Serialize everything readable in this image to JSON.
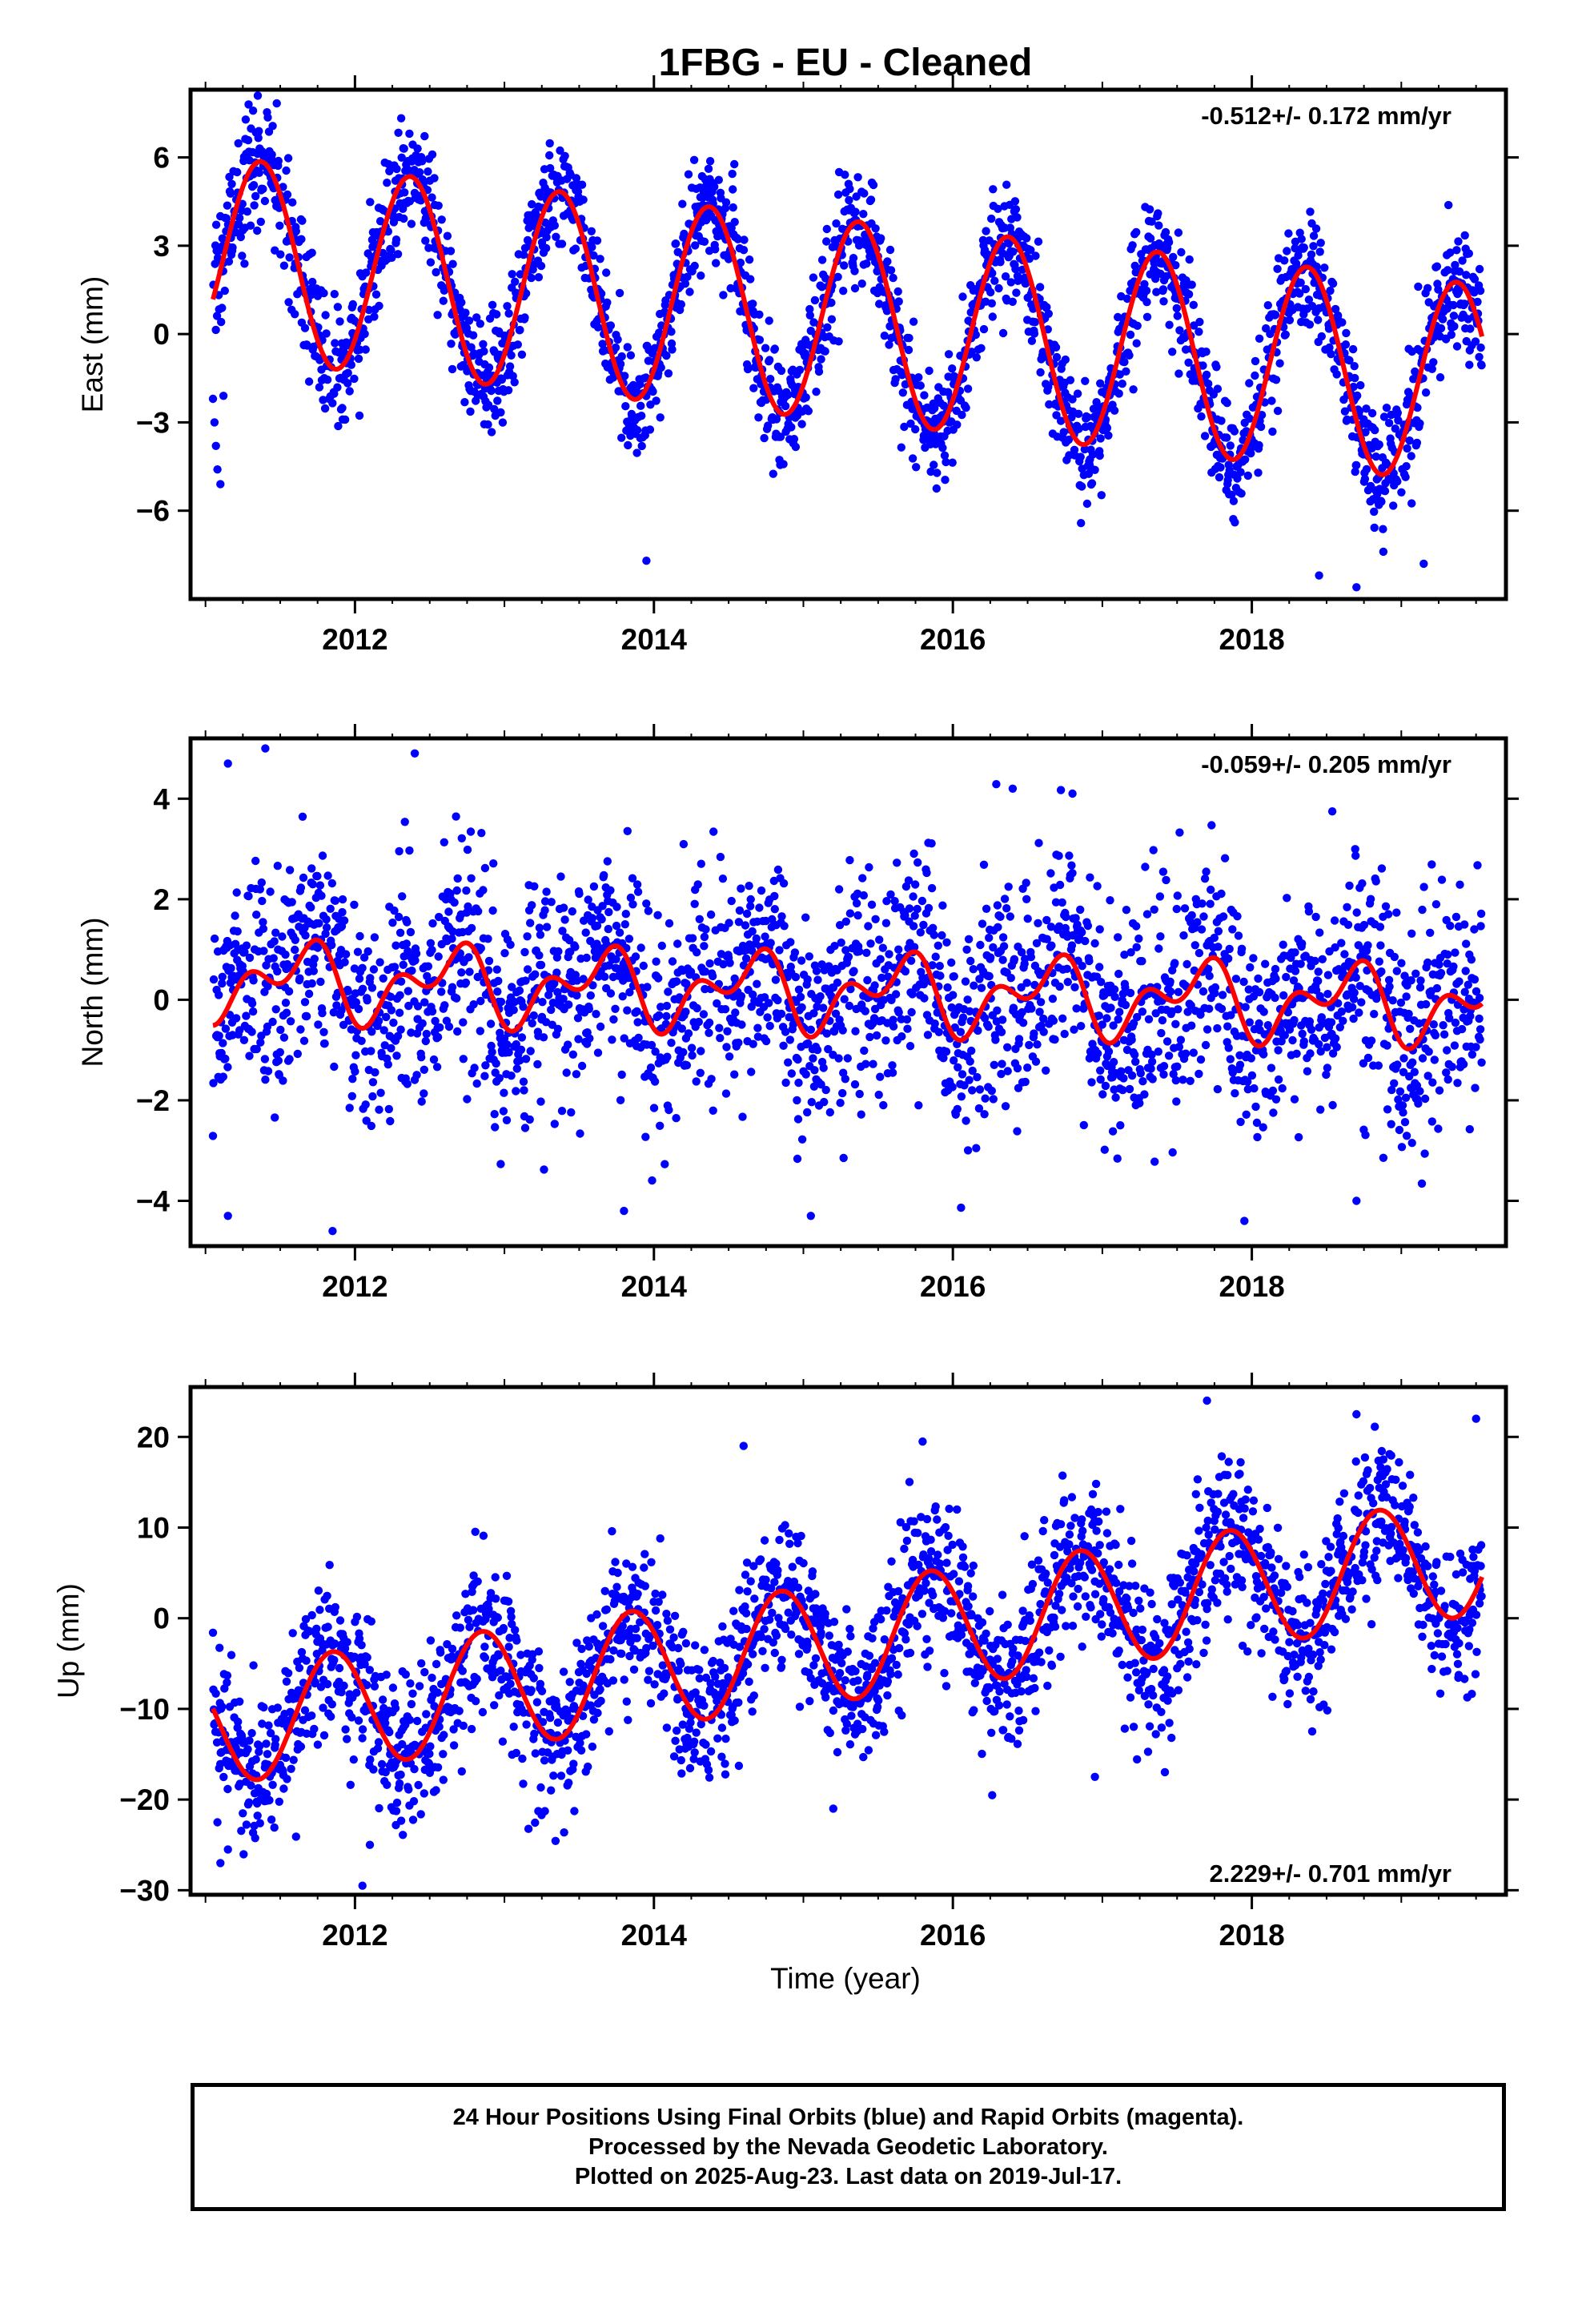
{
  "title": "1FBG  - EU - Cleaned",
  "xlabel": "Time (year)",
  "footer": {
    "lines": [
      "24 Hour Positions Using Final Orbits (blue) and Rapid Orbits (magenta).",
      "Processed by the Nevada Geodetic Laboratory.",
      "Plotted on 2025-Aug-23. Last data on 2019-Jul-17."
    ]
  },
  "colors": {
    "points": "#0000ff",
    "fit": "#ff0000",
    "frame": "#000000",
    "background": "#ffffff"
  },
  "chart_data": [
    {
      "type": "scatter",
      "component": "east",
      "ylabel": "East (mm)",
      "rate_label": "-0.512+/- 0.172 mm/yr",
      "xlim": [
        2010.9,
        2019.7
      ],
      "ylim": [
        -9,
        8.3
      ],
      "xticks": [
        2012,
        2014,
        2016,
        2018
      ],
      "yticks": [
        -6,
        -3,
        0,
        3,
        6
      ],
      "x_start": 2011.05,
      "x_end": 2019.54,
      "model": {
        "offset": 0.45,
        "ref_year": 2015.3,
        "rate": -0.512,
        "annual_amp": 3.4,
        "annual_phase": 0.12,
        "semiannual_amp": 0.0,
        "semiannual_phase": 0.0
      },
      "scatter_sd": 1.0,
      "outliers": [
        [
          2011.05,
          -2.2
        ],
        [
          2011.06,
          -3.0
        ],
        [
          2011.07,
          -3.8
        ],
        [
          2011.08,
          -4.6
        ],
        [
          2011.1,
          -5.1
        ],
        [
          2011.12,
          -2.1
        ],
        [
          2013.95,
          -7.7
        ],
        [
          2018.45,
          -8.2
        ],
        [
          2018.7,
          -8.6
        ],
        [
          2019.15,
          -7.8
        ],
        [
          2011.35,
          8.1
        ]
      ],
      "fit": {
        "name": "",
        "color": "#ff0000"
      },
      "series": [
        {
          "name": "",
          "color": "#0000ff"
        }
      ]
    },
    {
      "type": "scatter",
      "component": "north",
      "ylabel": "North (mm)",
      "rate_label": "-0.059+/- 0.205 mm/yr",
      "xlim": [
        2010.9,
        2019.7
      ],
      "ylim": [
        -4.9,
        5.2
      ],
      "xticks": [
        2012,
        2014,
        2016,
        2018
      ],
      "yticks": [
        -4,
        -2,
        0,
        2,
        4
      ],
      "x_start": 2011.05,
      "x_end": 2019.54,
      "model": {
        "offset": 0.15,
        "ref_year": 2015.3,
        "rate": -0.059,
        "annual_amp": 0.55,
        "annual_phase": 0.38,
        "semiannual_amp": 0.45,
        "semiannual_phase": 0.15
      },
      "scatter_sd": 1.1,
      "outliers": [
        [
          2011.15,
          4.7
        ],
        [
          2011.4,
          5.0
        ],
        [
          2012.4,
          4.9
        ],
        [
          2011.15,
          -4.3
        ],
        [
          2011.85,
          -4.6
        ],
        [
          2013.8,
          -4.2
        ],
        [
          2015.05,
          -4.3
        ],
        [
          2017.95,
          -4.4
        ],
        [
          2018.7,
          -4.0
        ],
        [
          2016.4,
          4.2
        ],
        [
          2016.8,
          4.1
        ]
      ],
      "fit": {
        "name": "",
        "color": "#ff0000"
      },
      "series": [
        {
          "name": "",
          "color": "#0000ff"
        }
      ]
    },
    {
      "type": "scatter",
      "component": "up",
      "ylabel": "Up (mm)",
      "rate_label": "2.229+/- 0.701 mm/yr",
      "xlim": [
        2010.9,
        2019.7
      ],
      "ylim": [
        -30.5,
        25.5
      ],
      "xticks": [
        2012,
        2014,
        2016,
        2018
      ],
      "yticks": [
        -30,
        -20,
        -10,
        0,
        10,
        20
      ],
      "x_start": 2011.05,
      "x_end": 2019.54,
      "model": {
        "offset": -2.5,
        "ref_year": 2015.3,
        "rate": 2.229,
        "annual_amp": 6.5,
        "annual_phase": 0.6,
        "semiannual_amp": 0.0,
        "semiannual_phase": 0.0
      },
      "scatter_sd": 4.2,
      "outliers": [
        [
          2011.1,
          -27.0
        ],
        [
          2011.15,
          -25.5
        ],
        [
          2012.05,
          -29.5
        ],
        [
          2015.2,
          -21.0
        ],
        [
          2017.7,
          24.0
        ],
        [
          2014.6,
          19.0
        ],
        [
          2018.7,
          22.5
        ],
        [
          2019.5,
          22.0
        ],
        [
          2016.95,
          -17.5
        ],
        [
          2012.1,
          -25.0
        ]
      ],
      "fit": {
        "name": "",
        "color": "#ff0000"
      },
      "series": [
        {
          "name": "",
          "color": "#0000ff"
        }
      ]
    }
  ]
}
